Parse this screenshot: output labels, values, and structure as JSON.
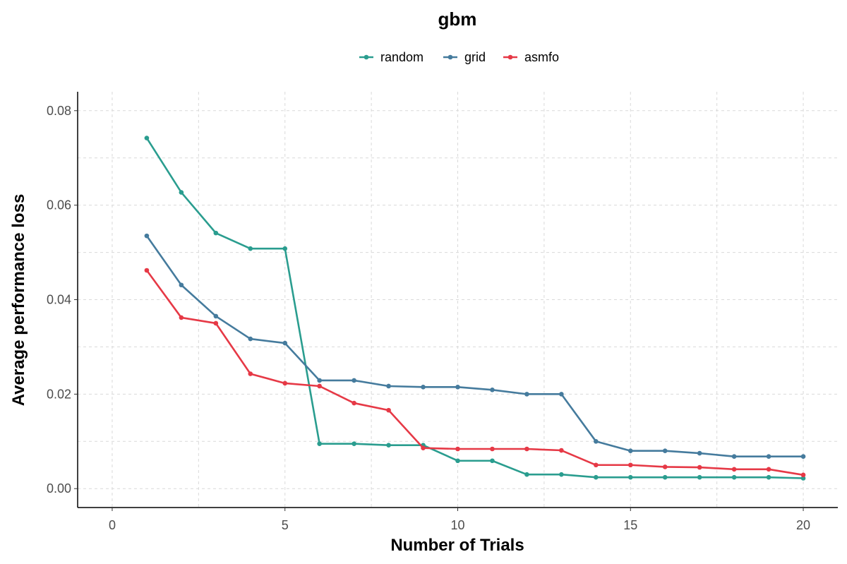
{
  "chart_data": {
    "type": "line",
    "title": "gbm",
    "xlabel": "Number of Trials",
    "ylabel": "Average performance loss",
    "xlim": [
      -1,
      21
    ],
    "ylim": [
      -0.004,
      0.084
    ],
    "xticks": [
      0,
      5,
      10,
      15,
      20
    ],
    "xtick_labels": [
      "0",
      "5",
      "10",
      "15",
      "20"
    ],
    "yticks": [
      0,
      0.02,
      0.04,
      0.06,
      0.08
    ],
    "ytick_labels": [
      "0.00",
      "0.02",
      "0.04",
      "0.06",
      "0.08"
    ],
    "grid": true,
    "legend_position": "top",
    "x": [
      1,
      2,
      3,
      4,
      5,
      6,
      7,
      8,
      9,
      10,
      11,
      12,
      13,
      14,
      15,
      16,
      17,
      18,
      19,
      20
    ],
    "series": [
      {
        "name": "random",
        "color": "#2a9d8f",
        "values": [
          0.0742,
          0.0627,
          0.0541,
          0.0508,
          0.0508,
          0.0095,
          0.0095,
          0.0092,
          0.0092,
          0.0059,
          0.0059,
          0.003,
          0.003,
          0.0024,
          0.0024,
          0.0024,
          0.0024,
          0.0024,
          0.0024,
          0.0022
        ]
      },
      {
        "name": "grid",
        "color": "#457b9d",
        "values": [
          0.0535,
          0.0431,
          0.0365,
          0.0317,
          0.0308,
          0.0229,
          0.0229,
          0.0217,
          0.0215,
          0.0215,
          0.0209,
          0.02,
          0.02,
          0.01,
          0.008,
          0.008,
          0.0075,
          0.0068,
          0.0068,
          0.0068
        ]
      },
      {
        "name": "asmfo",
        "color": "#e63946",
        "values": [
          0.0462,
          0.0362,
          0.035,
          0.0243,
          0.0223,
          0.0217,
          0.0181,
          0.0166,
          0.0086,
          0.0084,
          0.0084,
          0.0084,
          0.0081,
          0.005,
          0.005,
          0.0046,
          0.0045,
          0.0041,
          0.0041,
          0.0029
        ]
      }
    ]
  }
}
